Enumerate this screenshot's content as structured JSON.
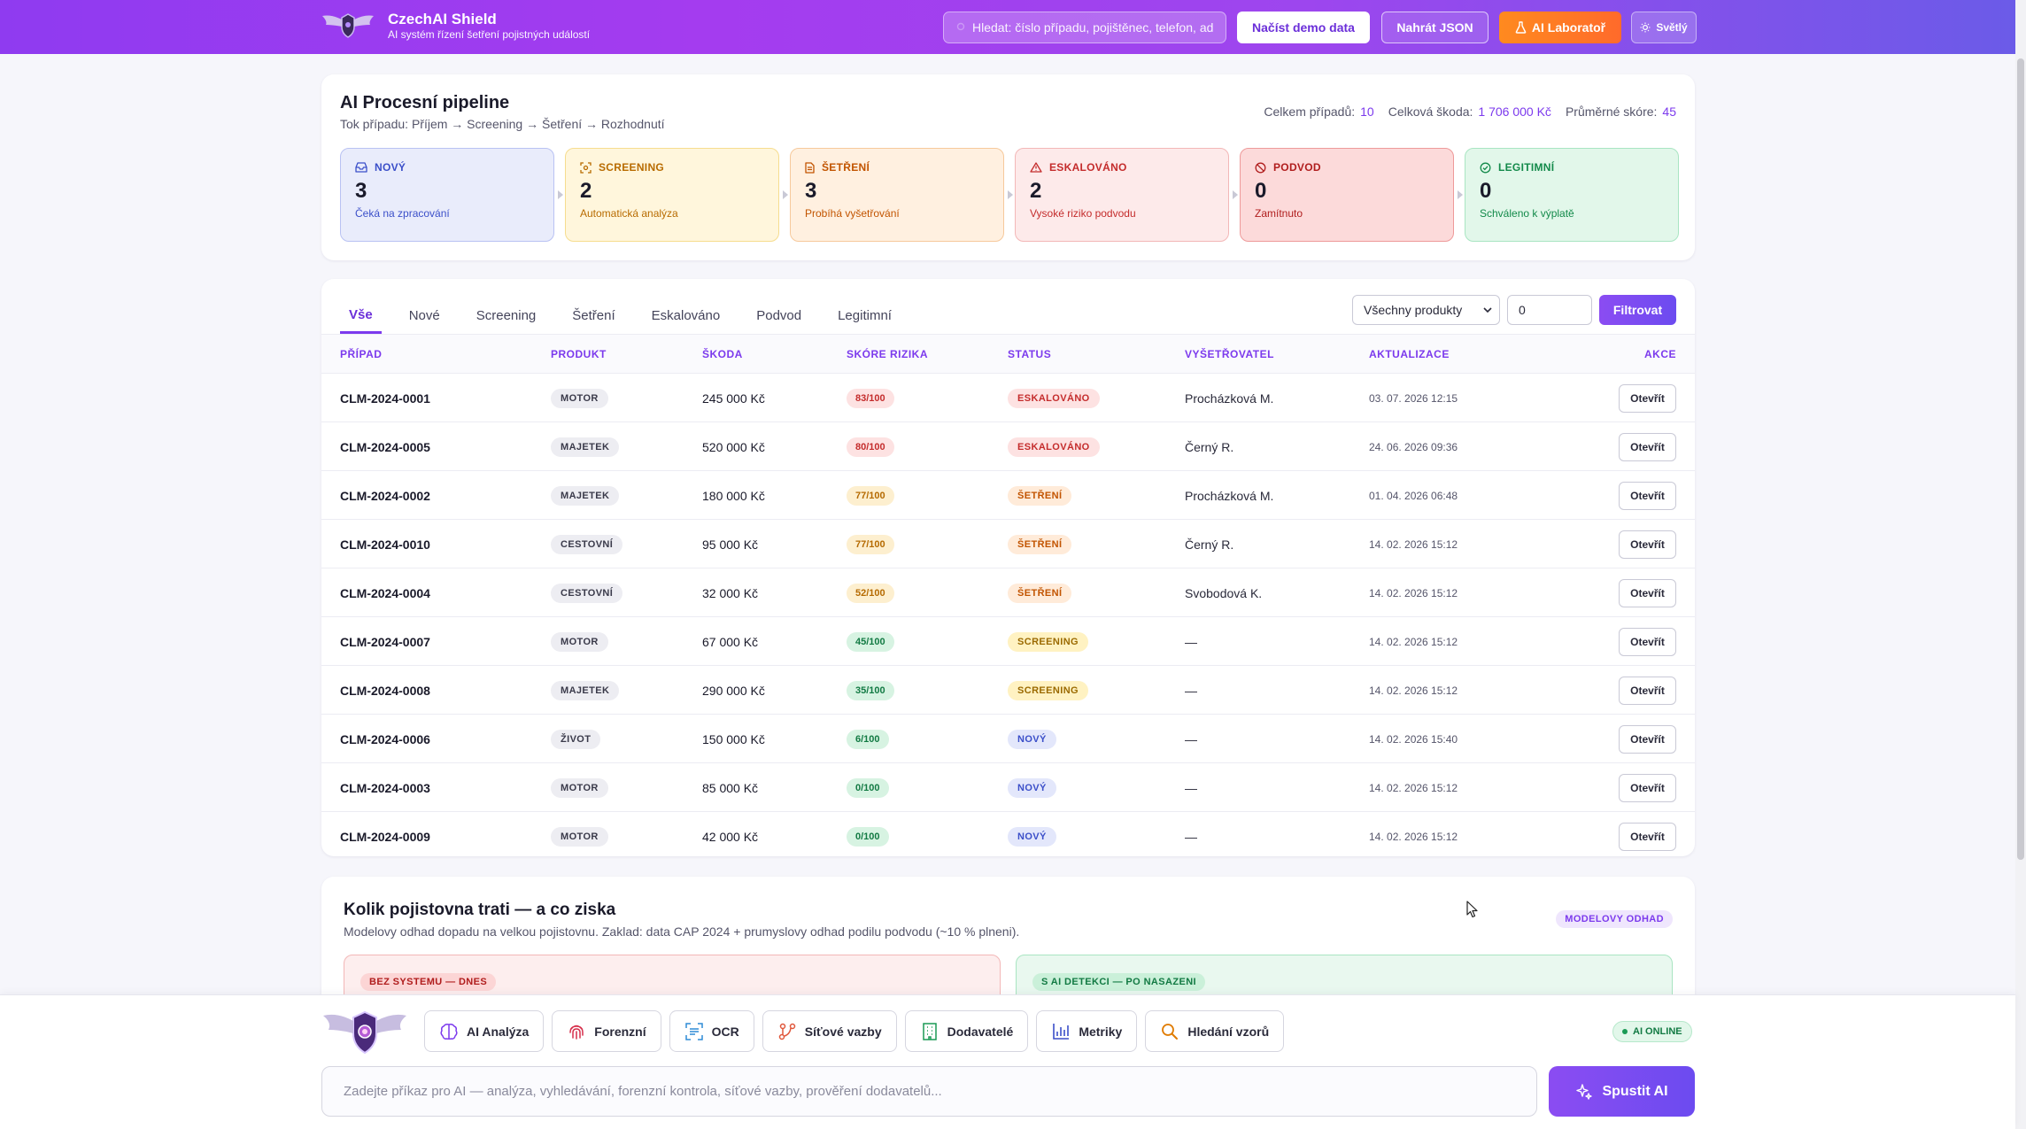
{
  "header": {
    "brand_title": "CzechAI Shield",
    "brand_subtitle": "AI systém řízení šetření pojistných událostí",
    "search_placeholder": "Hledat: číslo případu, pojištěnec, telefon, ad",
    "btn_demo": "Načíst demo data",
    "btn_json": "Nahrát JSON",
    "btn_lab": "AI Laboratoř",
    "btn_theme": "Světlý"
  },
  "pipeline": {
    "title": "AI Procesní pipeline",
    "subtitle": "Tok případu: Příjem → Screening → Šetření → Rozhodnutí",
    "stats": {
      "total_label": "Celkem případů:",
      "total_value": "10",
      "damage_label": "Celková škoda:",
      "damage_value": "1 706 000 Kč",
      "score_label": "Průměrné skóre:",
      "score_value": "45"
    },
    "stages": [
      {
        "label": "NOVÝ",
        "count": "3",
        "desc": "Čeká na zpracování",
        "icon": "inbox-icon"
      },
      {
        "label": "SCREENING",
        "count": "2",
        "desc": "Automatická analýza",
        "icon": "scan-icon"
      },
      {
        "label": "ŠETŘENÍ",
        "count": "3",
        "desc": "Probíhá vyšetřování",
        "icon": "document-icon"
      },
      {
        "label": "ESKALOVÁNO",
        "count": "2",
        "desc": "Vysoké riziko podvodu",
        "icon": "warning-icon"
      },
      {
        "label": "PODVOD",
        "count": "0",
        "desc": "Zamítnuto",
        "icon": "ban-icon"
      },
      {
        "label": "LEGITIMNÍ",
        "count": "0",
        "desc": "Schváleno k výplatě",
        "icon": "check-circle-icon"
      }
    ]
  },
  "table": {
    "tabs": [
      "Vše",
      "Nové",
      "Screening",
      "Šetření",
      "Eskalováno",
      "Podvod",
      "Legitimní"
    ],
    "active_tab": "Vše",
    "product_filter": "Všechny produkty",
    "min_value": "0",
    "filter_button": "Filtrovat",
    "columns": {
      "case": "PŘÍPAD",
      "product": "PRODUKT",
      "damage": "ŠKODA",
      "score": "SKÓRE RIZIKA",
      "status": "STATUS",
      "investigator": "VYŠETŘOVATEL",
      "updated": "AKTUALIZACE",
      "action": "AKCE"
    },
    "open_label": "Otevřít",
    "rows": [
      {
        "case": "CLM-2024-0001",
        "product": "MOTOR",
        "damage": "245 000 Kč",
        "score": "83/100",
        "score_level": "high",
        "status": "ESKALOVÁNO",
        "status_key": "esk",
        "investigator": "Procházková M.",
        "updated": "03. 07. 2026 12:15"
      },
      {
        "case": "CLM-2024-0005",
        "product": "MAJETEK",
        "damage": "520 000 Kč",
        "score": "80/100",
        "score_level": "high",
        "status": "ESKALOVÁNO",
        "status_key": "esk",
        "investigator": "Černý R.",
        "updated": "24. 06. 2026 09:36"
      },
      {
        "case": "CLM-2024-0002",
        "product": "MAJETEK",
        "damage": "180 000 Kč",
        "score": "77/100",
        "score_level": "mid",
        "status": "ŠETŘENÍ",
        "status_key": "set",
        "investigator": "Procházková M.",
        "updated": "01. 04. 2026 06:48"
      },
      {
        "case": "CLM-2024-0010",
        "product": "CESTOVNÍ",
        "damage": "95 000 Kč",
        "score": "77/100",
        "score_level": "mid",
        "status": "ŠETŘENÍ",
        "status_key": "set",
        "investigator": "Černý R.",
        "updated": "14. 02. 2026 15:12"
      },
      {
        "case": "CLM-2024-0004",
        "product": "CESTOVNÍ",
        "damage": "32 000 Kč",
        "score": "52/100",
        "score_level": "mid",
        "status": "ŠETŘENÍ",
        "status_key": "set",
        "investigator": "Svobodová K.",
        "updated": "14. 02. 2026 15:12"
      },
      {
        "case": "CLM-2024-0007",
        "product": "MOTOR",
        "damage": "67 000 Kč",
        "score": "45/100",
        "score_level": "low",
        "status": "SCREENING",
        "status_key": "scr",
        "investigator": "—",
        "updated": "14. 02. 2026 15:12"
      },
      {
        "case": "CLM-2024-0008",
        "product": "MAJETEK",
        "damage": "290 000 Kč",
        "score": "35/100",
        "score_level": "low",
        "status": "SCREENING",
        "status_key": "scr",
        "investigator": "—",
        "updated": "14. 02. 2026 15:12"
      },
      {
        "case": "CLM-2024-0006",
        "product": "ŽIVOT",
        "damage": "150 000 Kč",
        "score": "6/100",
        "score_level": "low",
        "status": "NOVÝ",
        "status_key": "new",
        "investigator": "—",
        "updated": "14. 02. 2026 15:40"
      },
      {
        "case": "CLM-2024-0003",
        "product": "MOTOR",
        "damage": "85 000 Kč",
        "score": "0/100",
        "score_level": "low",
        "status": "NOVÝ",
        "status_key": "new",
        "investigator": "—",
        "updated": "14. 02. 2026 15:12"
      },
      {
        "case": "CLM-2024-0009",
        "product": "MOTOR",
        "damage": "42 000 Kč",
        "score": "0/100",
        "score_level": "low",
        "status": "NOVÝ",
        "status_key": "new",
        "investigator": "—",
        "updated": "14. 02. 2026 15:12"
      }
    ]
  },
  "impact": {
    "title": "Kolik pojistovna trati — a co ziska",
    "subtitle": "Modelovy odhad dopadu na velkou pojistovnu. Zaklad: data CAP 2024 + prumyslovy odhad podilu podvodu (~10 % plneni).",
    "badge": "MODELOVY ODHAD",
    "left_tag": "BEZ SYSTEMU — DNES",
    "right_tag": "S AI DETEKCI — PO NASAZENI"
  },
  "bottom": {
    "tools": [
      {
        "label": "AI Analýza",
        "icon": "brain-icon"
      },
      {
        "label": "Forenzní",
        "icon": "fingerprint-icon"
      },
      {
        "label": "OCR",
        "icon": "ocr-scan-icon"
      },
      {
        "label": "Síťové vazby",
        "icon": "network-icon"
      },
      {
        "label": "Dodavatelé",
        "icon": "building-icon"
      },
      {
        "label": "Metriky",
        "icon": "bar-chart-icon"
      },
      {
        "label": "Hledání vzorů",
        "icon": "search-icon"
      }
    ],
    "online_label": "AI ONLINE",
    "prompt_placeholder": "Zadejte příkaz pro AI — analýza, vyhledávání, forenzní kontrola, síťové vazby, prověření dodavatelů...",
    "run_label": "Spustit AI"
  },
  "colors": {
    "accent": "#7c3aed",
    "header_gradient_start": "#8f3bf0",
    "orange": "#ff7a24"
  }
}
